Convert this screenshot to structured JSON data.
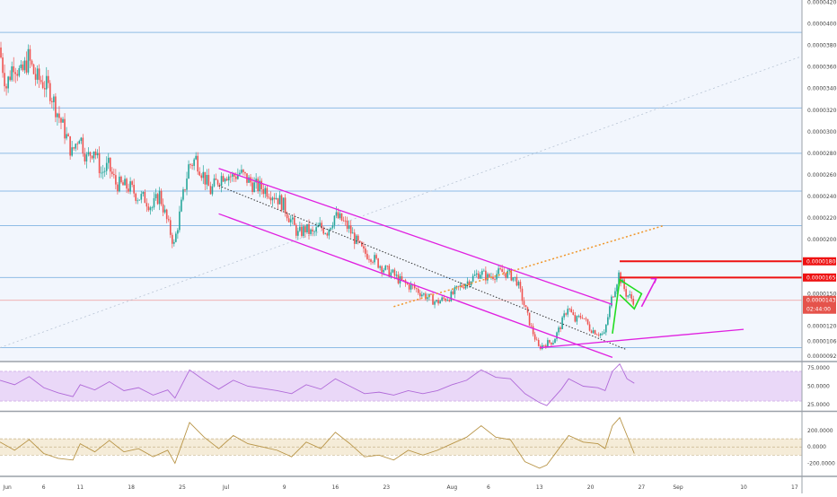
{
  "colors": {
    "background": "#f2f6fd",
    "hline": "#8fbce6",
    "up": "#26a69a",
    "down": "#ef5350",
    "channel": "#e020e0",
    "resistance": "#ee1111",
    "current_line": "#ef9a9a",
    "trend_dotted": "#f0962a",
    "midline": "#333333",
    "flag": "#22dd22",
    "rsi_line": "#b06ad8",
    "rsi_band": "#ead8f8",
    "osc_line": "#b89446",
    "osc_band": "#f5ecd8",
    "axis_text": "#444444"
  },
  "chart_data": [
    {
      "type": "candlestick",
      "panel": "price",
      "title": "",
      "y_ticks": [
        "0.00004200",
        "0.00004000",
        "0.00003800",
        "0.00003600",
        "0.00003400",
        "0.00003200",
        "0.00003000",
        "0.00002800",
        "0.00002600",
        "0.00002400",
        "0.00002200",
        "0.00002000",
        "0.00001800",
        "0.00001650",
        "0.00001500",
        "0.00001439",
        "0.00001200",
        "0.00001060",
        "0.00000920"
      ],
      "ylim": [
        8.8e-06,
        4.22e-05
      ],
      "x_ticks": [
        {
          "label": "Jun",
          "x": "2018-06-01"
        },
        {
          "label": "6",
          "x": "2018-06-06"
        },
        {
          "label": "11",
          "x": "2018-06-11"
        },
        {
          "label": "18",
          "x": "2018-06-18"
        },
        {
          "label": "25",
          "x": "2018-06-25"
        },
        {
          "label": "Jul",
          "x": "2018-07-01"
        },
        {
          "label": "9",
          "x": "2018-07-09"
        },
        {
          "label": "16",
          "x": "2018-07-16"
        },
        {
          "label": "23",
          "x": "2018-07-23"
        },
        {
          "label": "Aug",
          "x": "2018-08-01"
        },
        {
          "label": "6",
          "x": "2018-08-06"
        },
        {
          "label": "13",
          "x": "2018-08-13"
        },
        {
          "label": "20",
          "x": "2018-08-20"
        },
        {
          "label": "27",
          "x": "2018-08-27"
        },
        {
          "label": "Sep",
          "x": "2018-09-01"
        },
        {
          "label": "10",
          "x": "2018-09-10"
        },
        {
          "label": "17",
          "x": "2018-09-17"
        }
      ],
      "xlim": [
        "2018-05-31",
        "2018-09-18"
      ],
      "current_price": "0.00001439",
      "countdown": "02:44:00",
      "resistance_labels": [
        "0.00001800",
        "0.00001650"
      ],
      "horizontal_levels": [
        3.92e-05,
        3.22e-05,
        2.8e-05,
        2.45e-05,
        2.13e-05,
        1.65e-05,
        1e-05
      ],
      "resistance_levels": [
        1.8e-05,
        1.65e-05
      ],
      "close_path": [
        [
          "2018-05-31",
          3.78e-05
        ],
        [
          "2018-06-01",
          3.42e-05
        ],
        [
          "2018-06-02",
          3.65e-05
        ],
        [
          "2018-06-03",
          3.52e-05
        ],
        [
          "2018-06-04",
          3.68e-05
        ],
        [
          "2018-06-05",
          3.5e-05
        ],
        [
          "2018-06-06",
          3.46e-05
        ],
        [
          "2018-06-07",
          3.38e-05
        ],
        [
          "2018-06-08",
          3.18e-05
        ],
        [
          "2018-06-09",
          3e-05
        ],
        [
          "2018-06-10",
          2.8e-05
        ],
        [
          "2018-06-11",
          2.98e-05
        ],
        [
          "2018-06-12",
          2.75e-05
        ],
        [
          "2018-06-13",
          2.85e-05
        ],
        [
          "2018-06-14",
          2.62e-05
        ],
        [
          "2018-06-15",
          2.68e-05
        ],
        [
          "2018-06-16",
          2.52e-05
        ],
        [
          "2018-06-17",
          2.5e-05
        ],
        [
          "2018-06-18",
          2.48e-05
        ],
        [
          "2018-06-19",
          2.4e-05
        ],
        [
          "2018-06-20",
          2.38e-05
        ],
        [
          "2018-06-21",
          2.3e-05
        ],
        [
          "2018-06-22",
          2.42e-05
        ],
        [
          "2018-06-23",
          2.18e-05
        ],
        [
          "2018-06-24",
          1.95e-05
        ],
        [
          "2018-06-25",
          2.32e-05
        ],
        [
          "2018-06-26",
          2.68e-05
        ],
        [
          "2018-06-27",
          2.75e-05
        ],
        [
          "2018-06-28",
          2.6e-05
        ],
        [
          "2018-06-29",
          2.45e-05
        ],
        [
          "2018-06-30",
          2.55e-05
        ],
        [
          "2018-07-01",
          2.62e-05
        ],
        [
          "2018-07-02",
          2.58e-05
        ],
        [
          "2018-07-03",
          2.62e-05
        ],
        [
          "2018-07-04",
          2.56e-05
        ],
        [
          "2018-07-05",
          2.5e-05
        ],
        [
          "2018-07-06",
          2.48e-05
        ],
        [
          "2018-07-07",
          2.45e-05
        ],
        [
          "2018-07-08",
          2.4e-05
        ],
        [
          "2018-07-09",
          2.32e-05
        ],
        [
          "2018-07-10",
          2.18e-05
        ],
        [
          "2018-07-11",
          2.05e-05
        ],
        [
          "2018-07-12",
          2.1e-05
        ],
        [
          "2018-07-13",
          2.05e-05
        ],
        [
          "2018-07-14",
          2.12e-05
        ],
        [
          "2018-07-15",
          2.08e-05
        ],
        [
          "2018-07-16",
          2.22e-05
        ],
        [
          "2018-07-17",
          2.18e-05
        ],
        [
          "2018-07-18",
          2.1e-05
        ],
        [
          "2018-07-19",
          1.98e-05
        ],
        [
          "2018-07-20",
          1.88e-05
        ],
        [
          "2018-07-21",
          1.85e-05
        ],
        [
          "2018-07-22",
          1.78e-05
        ],
        [
          "2018-07-23",
          1.72e-05
        ],
        [
          "2018-07-24",
          1.68e-05
        ],
        [
          "2018-07-25",
          1.62e-05
        ],
        [
          "2018-07-26",
          1.58e-05
        ],
        [
          "2018-07-27",
          1.55e-05
        ],
        [
          "2018-07-28",
          1.5e-05
        ],
        [
          "2018-07-29",
          1.46e-05
        ],
        [
          "2018-07-30",
          1.42e-05
        ],
        [
          "2018-07-31",
          1.45e-05
        ],
        [
          "2018-08-01",
          1.48e-05
        ],
        [
          "2018-08-02",
          1.55e-05
        ],
        [
          "2018-08-03",
          1.6e-05
        ],
        [
          "2018-08-04",
          1.65e-05
        ],
        [
          "2018-08-05",
          1.7e-05
        ],
        [
          "2018-08-06",
          1.65e-05
        ],
        [
          "2018-08-07",
          1.68e-05
        ],
        [
          "2018-08-08",
          1.7e-05
        ],
        [
          "2018-08-09",
          1.68e-05
        ],
        [
          "2018-08-10",
          1.62e-05
        ],
        [
          "2018-08-11",
          1.4e-05
        ],
        [
          "2018-08-12",
          1.18e-05
        ],
        [
          "2018-08-13",
          1e-05
        ],
        [
          "2018-08-14",
          1.04e-05
        ],
        [
          "2018-08-15",
          1.06e-05
        ],
        [
          "2018-08-16",
          1.2e-05
        ],
        [
          "2018-08-17",
          1.38e-05
        ],
        [
          "2018-08-18",
          1.25e-05
        ],
        [
          "2018-08-19",
          1.3e-05
        ],
        [
          "2018-08-20",
          1.18e-05
        ],
        [
          "2018-08-21",
          1.14e-05
        ],
        [
          "2018-08-22",
          1.12e-05
        ],
        [
          "2018-08-23",
          1.45e-05
        ],
        [
          "2018-08-24",
          1.68e-05
        ],
        [
          "2018-08-25",
          1.5e-05
        ],
        [
          "2018-08-26",
          1.44e-05
        ]
      ]
    },
    {
      "type": "line",
      "panel": "rsi",
      "y_ticks": [
        "75.0000",
        "50.0000",
        "25.0000"
      ],
      "ylim": [
        18,
        82
      ],
      "band": [
        30,
        70
      ],
      "values": [
        [
          "2018-05-31",
          58
        ],
        [
          "2018-06-02",
          52
        ],
        [
          "2018-06-04",
          63
        ],
        [
          "2018-06-06",
          48
        ],
        [
          "2018-06-08",
          41
        ],
        [
          "2018-06-10",
          36
        ],
        [
          "2018-06-11",
          52
        ],
        [
          "2018-06-13",
          45
        ],
        [
          "2018-06-15",
          56
        ],
        [
          "2018-06-17",
          44
        ],
        [
          "2018-06-19",
          48
        ],
        [
          "2018-06-21",
          38
        ],
        [
          "2018-06-23",
          45
        ],
        [
          "2018-06-24",
          34
        ],
        [
          "2018-06-26",
          72
        ],
        [
          "2018-06-28",
          58
        ],
        [
          "2018-06-30",
          46
        ],
        [
          "2018-07-02",
          58
        ],
        [
          "2018-07-04",
          50
        ],
        [
          "2018-07-06",
          47
        ],
        [
          "2018-07-08",
          44
        ],
        [
          "2018-07-10",
          40
        ],
        [
          "2018-07-12",
          52
        ],
        [
          "2018-07-14",
          46
        ],
        [
          "2018-07-16",
          60
        ],
        [
          "2018-07-18",
          50
        ],
        [
          "2018-07-20",
          40
        ],
        [
          "2018-07-22",
          42
        ],
        [
          "2018-07-24",
          38
        ],
        [
          "2018-07-26",
          44
        ],
        [
          "2018-07-28",
          40
        ],
        [
          "2018-07-30",
          44
        ],
        [
          "2018-08-01",
          52
        ],
        [
          "2018-08-03",
          58
        ],
        [
          "2018-08-05",
          72
        ],
        [
          "2018-08-07",
          62
        ],
        [
          "2018-08-09",
          60
        ],
        [
          "2018-08-11",
          40
        ],
        [
          "2018-08-13",
          28
        ],
        [
          "2018-08-14",
          24
        ],
        [
          "2018-08-16",
          46
        ],
        [
          "2018-08-17",
          60
        ],
        [
          "2018-08-19",
          50
        ],
        [
          "2018-08-21",
          48
        ],
        [
          "2018-08-22",
          44
        ],
        [
          "2018-08-23",
          70
        ],
        [
          "2018-08-24",
          80
        ],
        [
          "2018-08-25",
          60
        ],
        [
          "2018-08-26",
          54
        ]
      ]
    },
    {
      "type": "line",
      "panel": "oscillator",
      "y_ticks": [
        "200.0000",
        "0.0000",
        "-200.0000"
      ],
      "ylim": [
        -360,
        420
      ],
      "band": [
        -100,
        100
      ],
      "values": [
        [
          "2018-05-31",
          60
        ],
        [
          "2018-06-02",
          -40
        ],
        [
          "2018-06-04",
          90
        ],
        [
          "2018-06-06",
          -80
        ],
        [
          "2018-06-08",
          -140
        ],
        [
          "2018-06-10",
          -160
        ],
        [
          "2018-06-11",
          40
        ],
        [
          "2018-06-13",
          -60
        ],
        [
          "2018-06-15",
          80
        ],
        [
          "2018-06-17",
          -60
        ],
        [
          "2018-06-19",
          -20
        ],
        [
          "2018-06-21",
          -120
        ],
        [
          "2018-06-23",
          -40
        ],
        [
          "2018-06-24",
          -200
        ],
        [
          "2018-06-26",
          300
        ],
        [
          "2018-06-28",
          120
        ],
        [
          "2018-06-30",
          -20
        ],
        [
          "2018-07-02",
          140
        ],
        [
          "2018-07-04",
          40
        ],
        [
          "2018-07-06",
          0
        ],
        [
          "2018-07-08",
          -40
        ],
        [
          "2018-07-10",
          -120
        ],
        [
          "2018-07-12",
          60
        ],
        [
          "2018-07-14",
          -20
        ],
        [
          "2018-07-16",
          180
        ],
        [
          "2018-07-18",
          40
        ],
        [
          "2018-07-20",
          -120
        ],
        [
          "2018-07-22",
          -100
        ],
        [
          "2018-07-24",
          -160
        ],
        [
          "2018-07-26",
          -40
        ],
        [
          "2018-07-28",
          -100
        ],
        [
          "2018-07-30",
          -40
        ],
        [
          "2018-08-01",
          40
        ],
        [
          "2018-08-03",
          120
        ],
        [
          "2018-08-05",
          260
        ],
        [
          "2018-08-07",
          120
        ],
        [
          "2018-08-09",
          90
        ],
        [
          "2018-08-11",
          -180
        ],
        [
          "2018-08-13",
          -260
        ],
        [
          "2018-08-14",
          -220
        ],
        [
          "2018-08-16",
          20
        ],
        [
          "2018-08-17",
          140
        ],
        [
          "2018-08-19",
          60
        ],
        [
          "2018-08-21",
          40
        ],
        [
          "2018-08-22",
          -20
        ],
        [
          "2018-08-23",
          260
        ],
        [
          "2018-08-24",
          360
        ],
        [
          "2018-08-25",
          140
        ],
        [
          "2018-08-26",
          -80
        ]
      ]
    }
  ]
}
